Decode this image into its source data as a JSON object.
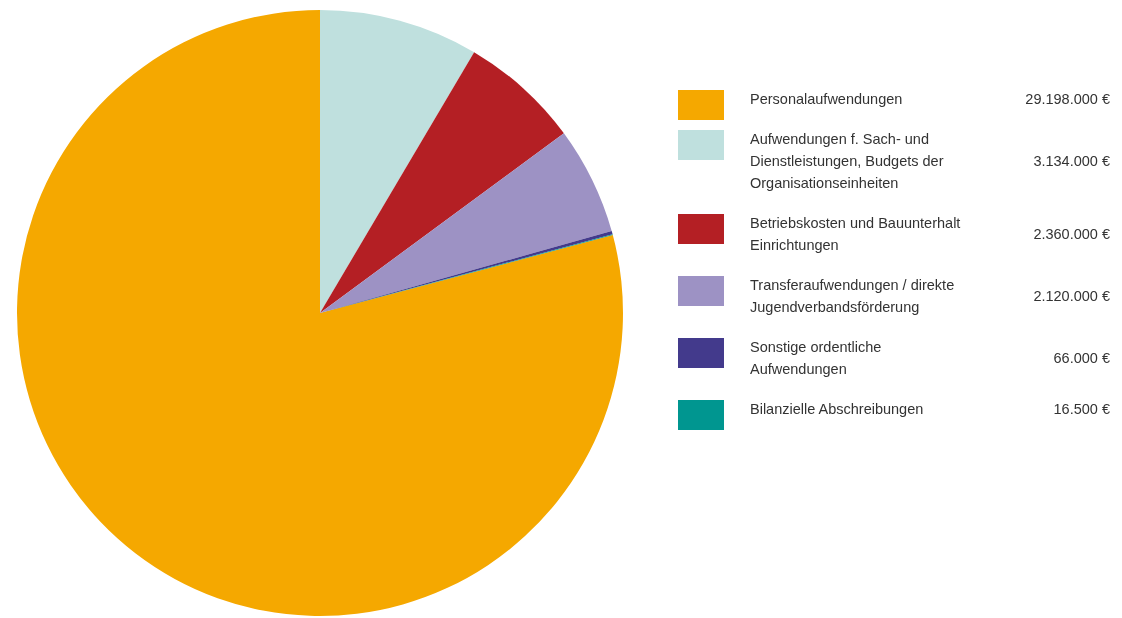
{
  "chart_data": {
    "type": "pie",
    "categories": [
      "Personalaufwendungen",
      "Aufwendungen f. Sach- und Dienstleistungen, Budgets der Organisationseinheiten",
      "Betriebskosten und Bauunterhalt Einrichtungen",
      "Transferaufwendungen / direkte Jugendverbandsförderung",
      "Sonstige ordentliche Aufwendungen",
      "Bilanzielle Abschreibungen"
    ],
    "values": [
      29198000,
      3134000,
      2360000,
      2120000,
      66000,
      16500
    ],
    "value_labels": [
      "29.198.000 €",
      "3.134.000 €",
      "2.360.000 €",
      "2.120.000 €",
      "66.000 €",
      "16.500 €"
    ],
    "colors": [
      "#f5a800",
      "#bfe0de",
      "#b41f24",
      "#9d92c4",
      "#433a8c",
      "#009690"
    ],
    "legend": "right"
  }
}
